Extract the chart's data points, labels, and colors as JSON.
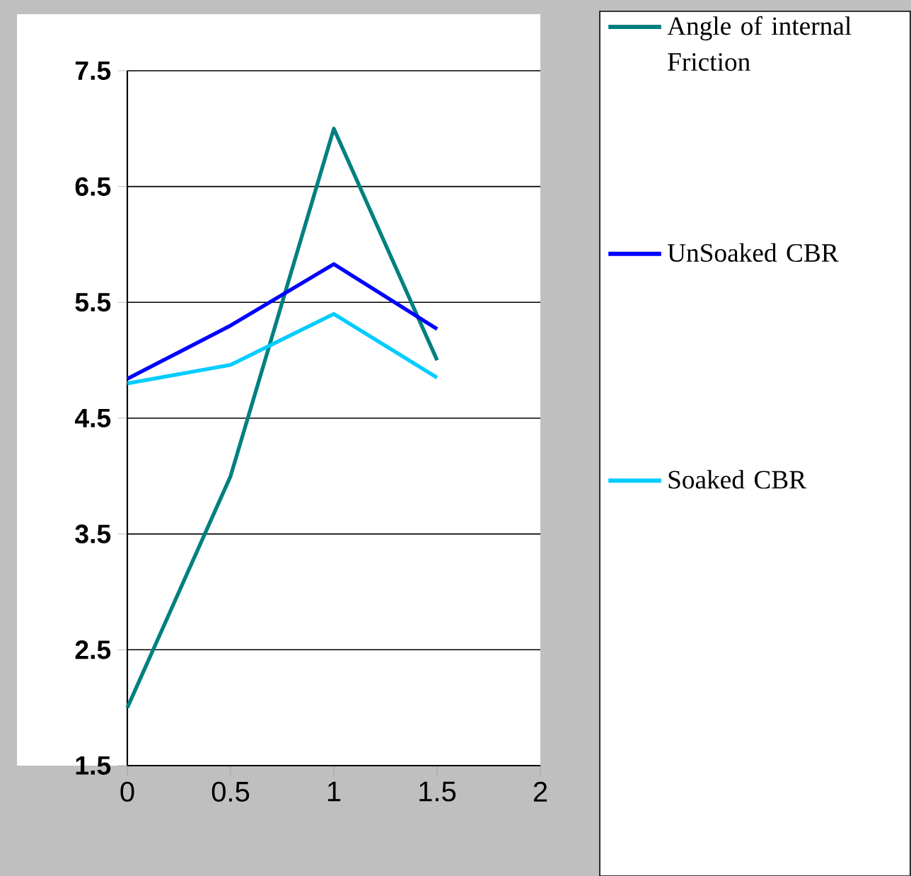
{
  "chart_data": {
    "type": "line",
    "x": [
      0,
      0.5,
      1,
      1.5
    ],
    "series": [
      {
        "name": "Angle of internal Friction",
        "color": "#008080",
        "values": [
          2.0,
          4.0,
          7.0,
          5.0
        ]
      },
      {
        "name": "UnSoaked CBR",
        "color": "#0000ff",
        "values": [
          4.84,
          5.3,
          5.83,
          5.27
        ]
      },
      {
        "name": "Soaked CBR",
        "color": "#00ccff",
        "values": [
          4.8,
          4.96,
          5.4,
          4.85
        ]
      }
    ],
    "xlim": [
      0,
      2
    ],
    "xticks": [
      0,
      0.5,
      1,
      1.5,
      2
    ],
    "ylim": [
      1.5,
      7.5
    ],
    "yticks": [
      1.5,
      2.5,
      3.5,
      4.5,
      5.5,
      6.5,
      7.5
    ],
    "grid": "y",
    "legend": "right",
    "marker": "none",
    "line_style": "solid"
  }
}
